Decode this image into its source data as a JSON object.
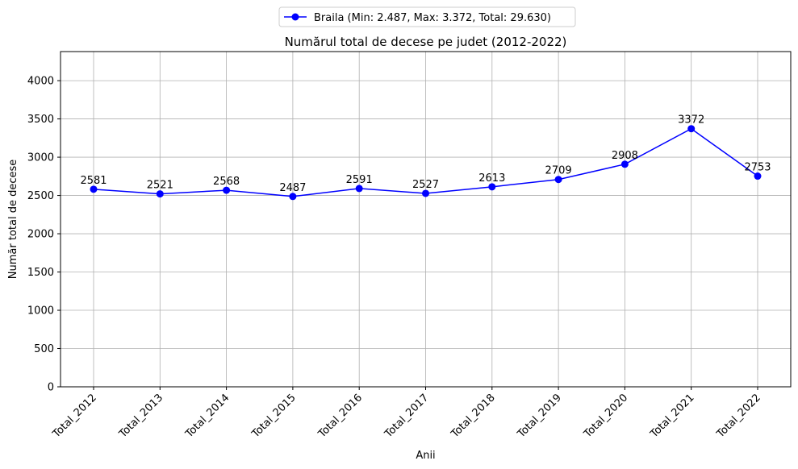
{
  "chart_data": {
    "type": "line",
    "title": "Numărul total de decese pe judet (2012-2022)",
    "xlabel": "Anii",
    "ylabel": "Număr total de decese",
    "categories": [
      "Total_2012",
      "Total_2013",
      "Total_2014",
      "Total_2015",
      "Total_2016",
      "Total_2017",
      "Total_2018",
      "Total_2019",
      "Total_2020",
      "Total_2021",
      "Total_2022"
    ],
    "series": [
      {
        "name": "Braila (Min: 2.487, Max: 3.372, Total: 29.630)",
        "values": [
          2581,
          2521,
          2568,
          2487,
          2591,
          2527,
          2613,
          2709,
          2908,
          3372,
          2753
        ],
        "color": "#0000ff"
      }
    ],
    "ylim": [
      0,
      4380
    ],
    "yticks": [
      0,
      500,
      1000,
      1500,
      2000,
      2500,
      3000,
      3500,
      4000
    ],
    "grid": true,
    "legend_position": "top-center"
  }
}
